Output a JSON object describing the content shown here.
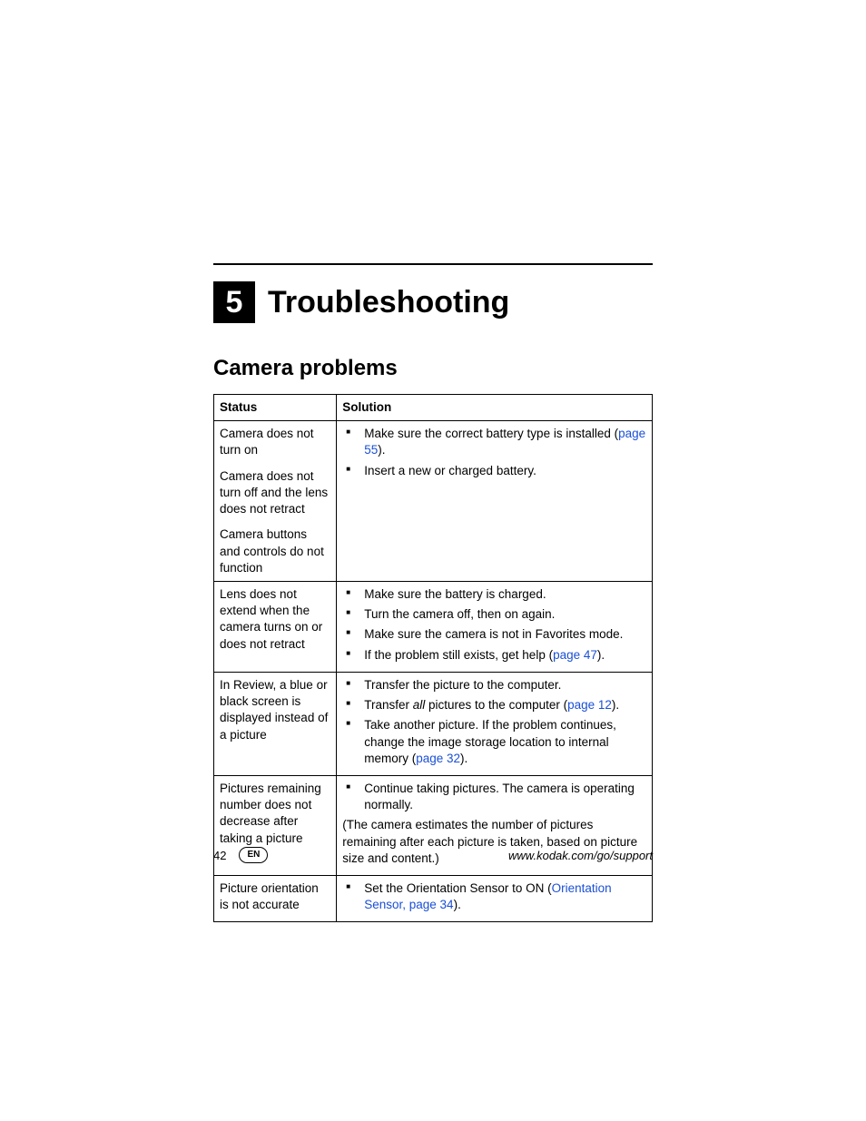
{
  "chapter": {
    "number": "5",
    "title": "Troubleshooting"
  },
  "section": {
    "title": "Camera problems"
  },
  "table": {
    "headers": {
      "status": "Status",
      "solution": "Solution"
    },
    "r1": {
      "status1": "Camera does not turn on",
      "status2": "Camera does not turn off and the lens does not retract",
      "status3": "Camera buttons and controls do not function",
      "sol1a": "Make sure the correct battery type is installed (",
      "sol1link": "page 55",
      "sol1b": ").",
      "sol2": "Insert a new or charged battery."
    },
    "r2": {
      "status": "Lens does not extend when the camera turns on or does not retract",
      "sol1": "Make sure the battery is charged.",
      "sol2": "Turn the camera off, then on again.",
      "sol3": "Make sure the camera is not in Favorites mode.",
      "sol4a": "If the problem still exists, get help (",
      "sol4link": "page 47",
      "sol4b": ")."
    },
    "r3": {
      "status": "In Review, a blue or black screen is displayed instead of a picture",
      "sol1": "Transfer the picture to the computer.",
      "sol2a": "Transfer ",
      "sol2ital": "all",
      "sol2b": " pictures to the computer (",
      "sol2link": "page 12",
      "sol2c": ").",
      "sol3a": "Take another picture. If the problem continues, change the image storage location to internal memory (",
      "sol3link": "page 32",
      "sol3b": ")."
    },
    "r4": {
      "status": "Pictures remaining number does not decrease after taking a picture",
      "sol1": "Continue taking pictures. The camera is operating normally.",
      "sol2": "(The camera estimates the number of pictures remaining after each picture is taken, based on picture size and content.)"
    },
    "r5": {
      "status": "Picture orientation is not accurate",
      "sol1a": "Set the Orientation Sensor to ON (",
      "sol1link": "Orientation Sensor, page 34",
      "sol1b": ")."
    }
  },
  "footer": {
    "page": "42",
    "lang": "EN",
    "url": "www.kodak.com/go/support"
  }
}
